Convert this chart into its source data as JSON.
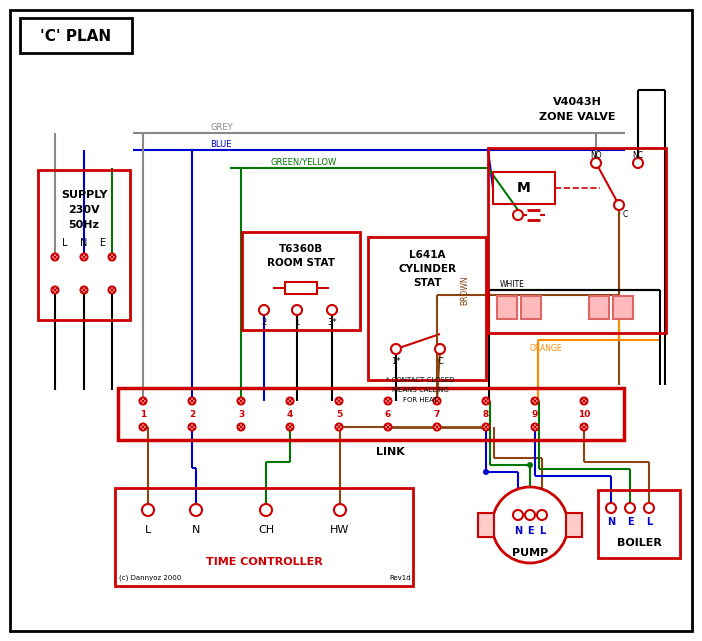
{
  "title": "'C' PLAN",
  "bg_color": "#ffffff",
  "border_color": "#000000",
  "red": "#cc0000",
  "blue": "#0000cc",
  "green": "#007700",
  "grey": "#888888",
  "brown": "#8B4513",
  "orange": "#FF8C00",
  "black": "#000000",
  "pink_red": "#dd6666",
  "time_controller_label": "TIME CONTROLLER",
  "pump_label": "PUMP",
  "boiler_label": "BOILER",
  "terminal_strip_label": "LINK",
  "terminal_numbers": [
    "1",
    "2",
    "3",
    "4",
    "5",
    "6",
    "7",
    "8",
    "9",
    "10"
  ],
  "copyright": "(c) Dannyoz 2000",
  "rev": "Rev1d"
}
